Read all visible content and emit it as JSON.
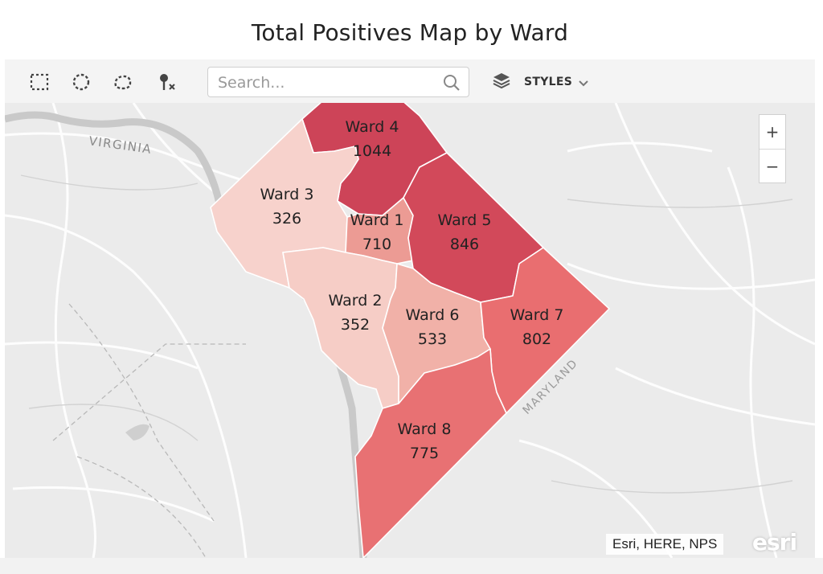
{
  "title": "Total Positives Map by Ward",
  "toolbar": {
    "tools": [
      {
        "name": "rectangle-select-icon"
      },
      {
        "name": "circle-select-icon"
      },
      {
        "name": "lasso-select-icon"
      },
      {
        "name": "clear-selection-icon"
      }
    ],
    "search_placeholder": "Search...",
    "styles_label": "STYLES"
  },
  "map": {
    "base_labels": [
      "VIRGINIA",
      "MARYLAND"
    ],
    "zoom_in": "+",
    "zoom_out": "−",
    "attribution": "Esri, HERE, NPS",
    "logo": "esri"
  },
  "wards": [
    {
      "name": "Ward 1",
      "value": "710",
      "color": "#ec9b94"
    },
    {
      "name": "Ward 2",
      "value": "352",
      "color": "#f6cdc6"
    },
    {
      "name": "Ward 3",
      "value": "326",
      "color": "#f7d2cc"
    },
    {
      "name": "Ward 4",
      "value": "1044",
      "color": "#cd4458"
    },
    {
      "name": "Ward 5",
      "value": "846",
      "color": "#d2495a"
    },
    {
      "name": "Ward 6",
      "value": "533",
      "color": "#f1b1a8"
    },
    {
      "name": "Ward 7",
      "value": "802",
      "color": "#e96e70"
    },
    {
      "name": "Ward 8",
      "value": "775",
      "color": "#e87173"
    }
  ]
}
